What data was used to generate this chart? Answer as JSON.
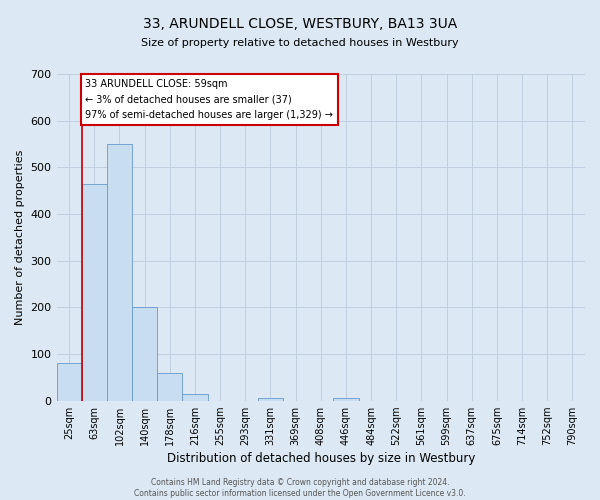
{
  "title": "33, ARUNDELL CLOSE, WESTBURY, BA13 3UA",
  "subtitle": "Size of property relative to detached houses in Westbury",
  "xlabel": "Distribution of detached houses by size in Westbury",
  "ylabel": "Number of detached properties",
  "bin_labels": [
    "25sqm",
    "63sqm",
    "102sqm",
    "140sqm",
    "178sqm",
    "216sqm",
    "255sqm",
    "293sqm",
    "331sqm",
    "369sqm",
    "408sqm",
    "446sqm",
    "484sqm",
    "522sqm",
    "561sqm",
    "599sqm",
    "637sqm",
    "675sqm",
    "714sqm",
    "752sqm",
    "790sqm"
  ],
  "bar_heights": [
    80,
    465,
    550,
    200,
    60,
    15,
    0,
    0,
    5,
    0,
    0,
    5,
    0,
    0,
    0,
    0,
    0,
    0,
    0,
    0,
    0
  ],
  "bar_color": "#c9ddf0",
  "bar_edge_color": "#6699cc",
  "ylim": [
    0,
    700
  ],
  "yticks": [
    0,
    100,
    200,
    300,
    400,
    500,
    600,
    700
  ],
  "property_line_label": "33 ARUNDELL CLOSE: 59sqm",
  "annotation_line1": "← 3% of detached houses are smaller (37)",
  "annotation_line2": "97% of semi-detached houses are larger (1,329) →",
  "annotation_box_color": "#ffffff",
  "annotation_box_edge": "#cc0000",
  "red_line_color": "#cc0000",
  "grid_color": "#c0d0e0",
  "background_color": "#dce8f4",
  "footer_line1": "Contains HM Land Registry data © Crown copyright and database right 2024.",
  "footer_line2": "Contains public sector information licensed under the Open Government Licence v3.0."
}
